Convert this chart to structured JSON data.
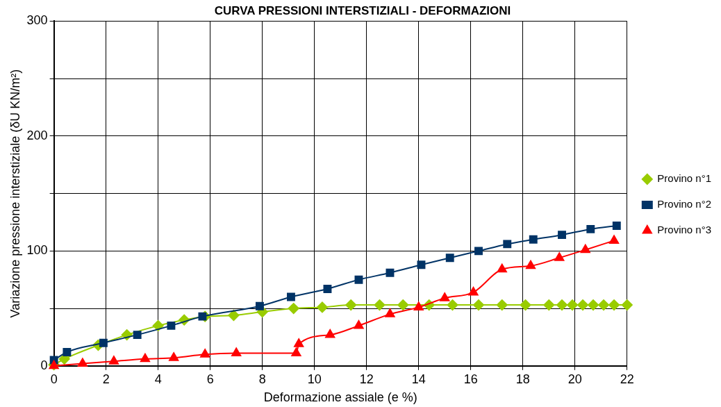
{
  "chart_data": {
    "type": "line",
    "title": "CURVA PRESSIONI INTERSTIZIALI - DEFORMAZIONI",
    "xlabel": "Deformazione assiale (e %)",
    "ylabel": "Variazione pressione interstiziale (δU KN/m²)",
    "xlim": [
      0,
      22
    ],
    "xticks": [
      0,
      2,
      4,
      6,
      8,
      10,
      12,
      14,
      16,
      18,
      20,
      22
    ],
    "ylim": [
      0,
      300
    ],
    "yticks": [
      0,
      {
        "value": 50,
        "label": null
      },
      100,
      {
        "value": 150,
        "label": null
      },
      200,
      {
        "value": 250,
        "label": null
      },
      300
    ],
    "grid": true,
    "legend": "right",
    "line_style": "solid",
    "series": [
      {
        "name": "Provino n°1",
        "color": "#99cc00",
        "marker": "diamond",
        "x": [
          0,
          0.4,
          1.7,
          2.8,
          4.0,
          5.0,
          5.8,
          6.9,
          8.0,
          9.2,
          10.3,
          11.4,
          12.5,
          13.4,
          14.4,
          15.3,
          16.3,
          17.2,
          18.1,
          19.0,
          19.5,
          19.9,
          20.3,
          20.7,
          21.1,
          21.5,
          22.0
        ],
        "values": [
          1,
          6,
          18,
          27,
          35,
          40,
          43,
          44,
          47,
          50,
          51,
          53,
          53,
          53,
          53,
          53,
          53,
          53,
          53,
          53,
          53,
          53,
          53,
          53,
          53,
          53,
          53
        ]
      },
      {
        "name": "Provino n°2",
        "color": "#003366",
        "marker": "square",
        "x": [
          0,
          0.5,
          1.9,
          3.2,
          4.5,
          5.7,
          7.9,
          9.1,
          10.5,
          11.7,
          12.9,
          14.1,
          15.2,
          16.3,
          17.4,
          18.4,
          19.5,
          20.6,
          21.6
        ],
        "values": [
          5,
          12,
          20,
          27,
          35,
          43,
          52,
          60,
          67,
          75,
          81,
          88,
          94,
          100,
          106,
          110,
          114,
          119,
          122
        ]
      },
      {
        "name": "Provino n°3",
        "color": "#ff0000",
        "marker": "triangle",
        "x": [
          0,
          1.1,
          2.3,
          3.5,
          4.6,
          5.8,
          7.0,
          9.3,
          9.4,
          10.6,
          11.7,
          12.9,
          14.0,
          15.0,
          16.1,
          17.2,
          18.3,
          19.4,
          20.4,
          21.5
        ],
        "values": [
          0,
          2,
          4,
          6,
          7,
          10,
          11,
          11,
          19,
          27,
          35,
          45,
          51,
          59,
          64,
          84,
          87,
          94,
          101,
          109
        ]
      }
    ]
  }
}
